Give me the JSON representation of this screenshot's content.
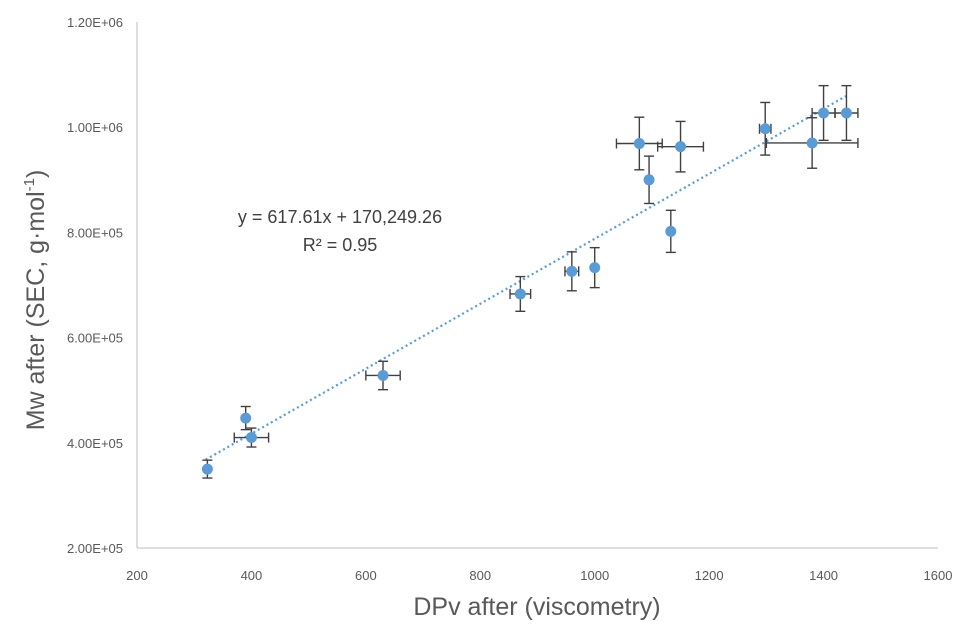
{
  "chart_data": {
    "type": "scatter",
    "xlabel": "DPv after (viscometry)",
    "ylabel_main": "Mw after (SEC, g·mol",
    "ylabel_sup": "-1",
    "ylabel_end": ")",
    "xlim": [
      200,
      1600
    ],
    "ylim": [
      200000,
      1200000
    ],
    "x_ticks": [
      200,
      400,
      600,
      800,
      1000,
      1200,
      1400,
      1600
    ],
    "x_tick_labels": [
      "200",
      "400",
      "600",
      "800",
      "1000",
      "1200",
      "1400",
      "1600"
    ],
    "y_ticks": [
      200000,
      400000,
      600000,
      800000,
      1000000,
      1200000
    ],
    "y_tick_labels": [
      "2.00E+05",
      "4.00E+05",
      "6.00E+05",
      "8.00E+05",
      "1.00E+06",
      "1.20E+06"
    ],
    "marker_color": "#5b9bd5",
    "errorbar_color": "#404040",
    "trendline": {
      "type": "linear",
      "slope": 617.61,
      "intercept": 170249.26,
      "x_range": [
        320,
        1440
      ],
      "color": "#5b9bd5",
      "equation": "y = 617.61x + 170,249.26",
      "r2": "R² = 0.95"
    },
    "points": [
      {
        "x": 323,
        "y": 350000,
        "xerr": 0,
        "yerr": 17000
      },
      {
        "x": 390,
        "y": 447000,
        "xerr": 0,
        "yerr": 22000
      },
      {
        "x": 400,
        "y": 410000,
        "xerr": 30,
        "yerr": 18000
      },
      {
        "x": 630,
        "y": 528000,
        "xerr": 30,
        "yerr": 27000
      },
      {
        "x": 870,
        "y": 683000,
        "xerr": 18,
        "yerr": 33000
      },
      {
        "x": 960,
        "y": 726000,
        "xerr": 12,
        "yerr": 37000
      },
      {
        "x": 1000,
        "y": 733000,
        "xerr": 0,
        "yerr": 38000
      },
      {
        "x": 1078,
        "y": 969000,
        "xerr": 40,
        "yerr": 50000
      },
      {
        "x": 1095,
        "y": 900000,
        "xerr": 0,
        "yerr": 45000
      },
      {
        "x": 1133,
        "y": 802000,
        "xerr": 0,
        "yerr": 40000
      },
      {
        "x": 1150,
        "y": 963000,
        "xerr": 40,
        "yerr": 48000
      },
      {
        "x": 1298,
        "y": 997000,
        "xerr": 10,
        "yerr": 50000
      },
      {
        "x": 1380,
        "y": 970000,
        "xerr": 80,
        "yerr": 48000
      },
      {
        "x": 1400,
        "y": 1027000,
        "xerr": 20,
        "yerr": 52000
      },
      {
        "x": 1440,
        "y": 1027000,
        "xerr": 20,
        "yerr": 52000
      }
    ]
  }
}
